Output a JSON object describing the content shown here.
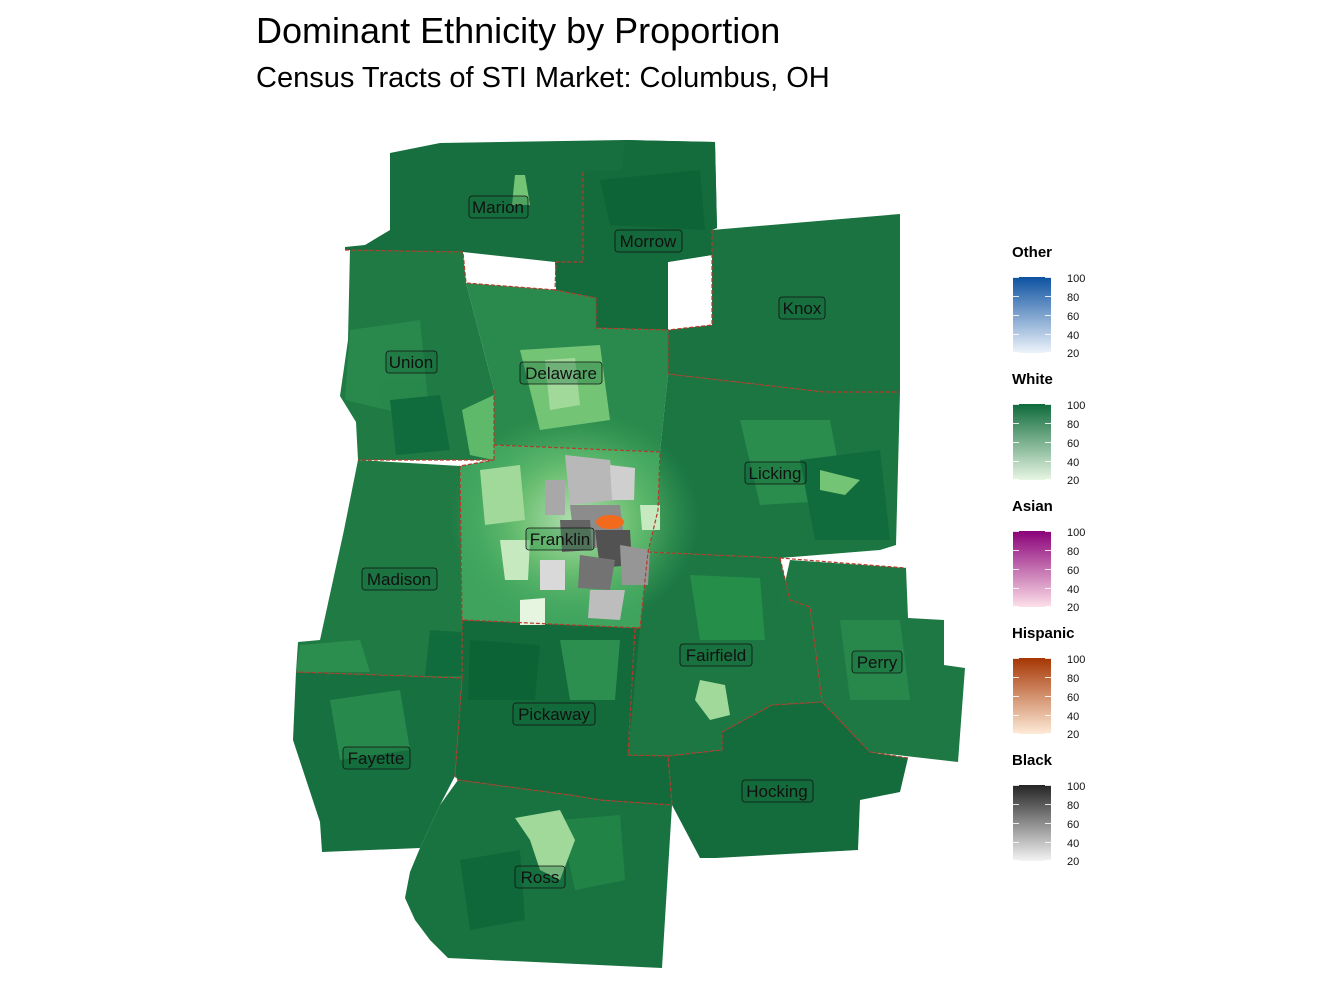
{
  "title": "Dominant Ethnicity by Proportion",
  "subtitle": "Census Tracts of STI Market: Columbus, OH",
  "colors": {
    "white_dark": "#0f6b3c",
    "white_mid": "#238b45",
    "county_border": "#b53a2a",
    "black_dark": "#333333",
    "hispanic": "#f26b1d"
  },
  "counties": [
    {
      "name": "Marion"
    },
    {
      "name": "Morrow"
    },
    {
      "name": "Knox"
    },
    {
      "name": "Union"
    },
    {
      "name": "Delaware"
    },
    {
      "name": "Licking"
    },
    {
      "name": "Franklin"
    },
    {
      "name": "Madison"
    },
    {
      "name": "Fairfield"
    },
    {
      "name": "Perry"
    },
    {
      "name": "Pickaway"
    },
    {
      "name": "Fayette"
    },
    {
      "name": "Hocking"
    },
    {
      "name": "Ross"
    }
  ],
  "legend": [
    {
      "title": "Other",
      "low": "#eef4fb",
      "high": "#0d52a1",
      "ticks": [
        "100",
        "80",
        "60",
        "40",
        "20"
      ]
    },
    {
      "title": "White",
      "low": "#e8f6e3",
      "high": "#0f6b3c",
      "ticks": [
        "100",
        "80",
        "60",
        "40",
        "20"
      ]
    },
    {
      "title": "Asian",
      "low": "#fde0e8",
      "high": "#8a0179",
      "ticks": [
        "100",
        "80",
        "60",
        "40",
        "20"
      ]
    },
    {
      "title": "Hispanic",
      "low": "#feebd8",
      "high": "#a63603",
      "ticks": [
        "100",
        "80",
        "60",
        "40",
        "20"
      ]
    },
    {
      "title": "Black",
      "low": "#f4f4f4",
      "high": "#252525",
      "ticks": [
        "100",
        "80",
        "60",
        "40",
        "20"
      ]
    }
  ]
}
